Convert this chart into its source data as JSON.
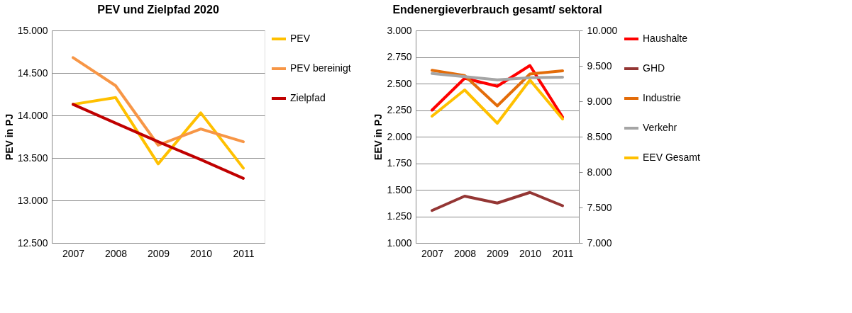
{
  "chart_data": [
    {
      "type": "line",
      "title": "PEV und Zielpfad 2020",
      "ylabel": "PEV in PJ",
      "categories": [
        "2007",
        "2008",
        "2009",
        "2010",
        "2011"
      ],
      "series": [
        {
          "name": "PEV",
          "color": "#ffc000",
          "values": [
            14130,
            14210,
            13430,
            14030,
            13380
          ]
        },
        {
          "name": "PEV bereinigt",
          "color": "#f79646",
          "values": [
            14680,
            14350,
            13650,
            13840,
            13690
          ]
        },
        {
          "name": "Zielpfad",
          "color": "#c00000",
          "values": [
            14130,
            13910,
            13690,
            13480,
            13260
          ]
        }
      ],
      "ylim": [
        12500,
        15000
      ],
      "yticks": [
        {
          "value": 12500,
          "label": "12.500"
        },
        {
          "value": 13000,
          "label": "13.000"
        },
        {
          "value": 13500,
          "label": "13.500"
        },
        {
          "value": 14000,
          "label": "14.000"
        },
        {
          "value": 14500,
          "label": "14.500"
        },
        {
          "value": 15000,
          "label": "15.000"
        }
      ],
      "grid": "y",
      "legend": "right",
      "marker": "none",
      "line_style": "solid"
    },
    {
      "type": "line",
      "title": "Endenergieverbrauch gesamt/ sektoral",
      "ylabel": "EEV in PJ",
      "categories": [
        "2007",
        "2008",
        "2009",
        "2010",
        "2011"
      ],
      "series": [
        {
          "name": "Haushalte",
          "color": "#ff0000",
          "values": [
            2250,
            2550,
            2475,
            2670,
            2185
          ]
        },
        {
          "name": "GHD",
          "color": "#943634",
          "values": [
            1305,
            1440,
            1375,
            1475,
            1350
          ]
        },
        {
          "name": "Industrie",
          "color": "#e36c09",
          "values": [
            2625,
            2575,
            2290,
            2590,
            2620
          ]
        },
        {
          "name": "Verkehr",
          "color": "#a5a5a5",
          "values": [
            2595,
            2565,
            2535,
            2555,
            2560
          ]
        },
        {
          "name": "EEV Gesamt",
          "color": "#ffc000",
          "axis": "y2",
          "values": [
            8790,
            9160,
            8690,
            9300,
            8750
          ]
        }
      ],
      "ylim": [
        1000,
        3000
      ],
      "yticks": [
        {
          "value": 1000,
          "label": "1.000"
        },
        {
          "value": 1250,
          "label": "1.250"
        },
        {
          "value": 1500,
          "label": "1.500"
        },
        {
          "value": 1750,
          "label": "1.750"
        },
        {
          "value": 2000,
          "label": "2.000"
        },
        {
          "value": 2250,
          "label": "2.250"
        },
        {
          "value": 2500,
          "label": "2.500"
        },
        {
          "value": 2750,
          "label": "2.750"
        },
        {
          "value": 3000,
          "label": "3.000"
        }
      ],
      "y2lim": [
        7000,
        10000
      ],
      "y2ticks": [
        {
          "value": 7000,
          "label": "7.000"
        },
        {
          "value": 7500,
          "label": "7.500"
        },
        {
          "value": 8000,
          "label": "8.000"
        },
        {
          "value": 8500,
          "label": "8.500"
        },
        {
          "value": 9000,
          "label": "9.000"
        },
        {
          "value": 9500,
          "label": "9.500"
        },
        {
          "value": 10000,
          "label": "10.000"
        }
      ],
      "grid": "y",
      "legend": "right",
      "marker": "none",
      "line_style": "solid"
    }
  ]
}
